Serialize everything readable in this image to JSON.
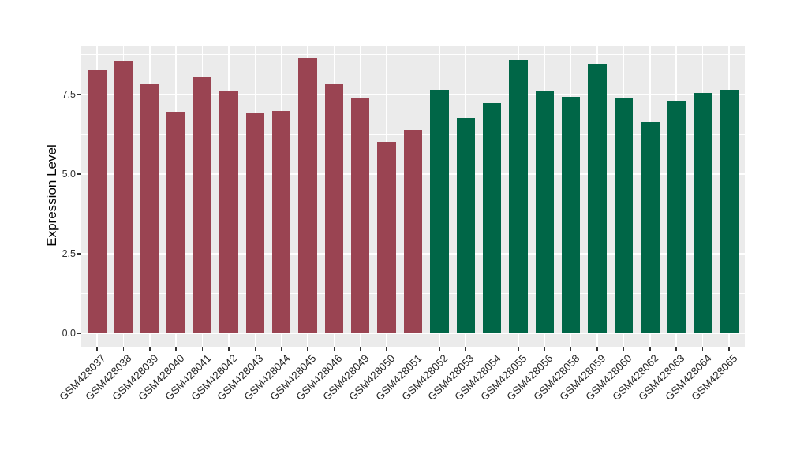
{
  "figure": {
    "background": "#FFFFFF",
    "panel_background": "#EBEBEB",
    "grid_color": "#FFFFFF",
    "tick_mark_color": "#333333",
    "axis_text_color": "#303030",
    "axis_title_color": "#000000"
  },
  "chart_data": {
    "type": "bar",
    "title": "",
    "xlabel": "",
    "ylabel": "Expression Level",
    "ylim": [
      0,
      9.03
    ],
    "grid": true,
    "legend_position": "none",
    "yticks": [
      0.0,
      2.5,
      5.0,
      7.5
    ],
    "ytick_labels": [
      "0.0",
      "2.5",
      "5.0",
      "7.5"
    ],
    "yminor_gridlines": [
      1.25,
      3.75,
      6.25,
      8.75
    ],
    "categories": [
      "GSM428037",
      "GSM428038",
      "GSM428039",
      "GSM428040",
      "GSM428041",
      "GSM428042",
      "GSM428043",
      "GSM428044",
      "GSM428045",
      "GSM428046",
      "GSM428049",
      "GSM428050",
      "GSM428051",
      "GSM428052",
      "GSM428053",
      "GSM428054",
      "GSM428055",
      "GSM428056",
      "GSM428058",
      "GSM428059",
      "GSM428060",
      "GSM428062",
      "GSM428063",
      "GSM428064",
      "GSM428065"
    ],
    "values": [
      8.26,
      8.56,
      7.82,
      6.96,
      8.05,
      7.62,
      6.94,
      6.99,
      8.64,
      7.85,
      7.38,
      6.01,
      6.39,
      7.65,
      6.76,
      7.24,
      8.59,
      7.59,
      7.43,
      8.47,
      7.4,
      6.64,
      7.3,
      7.54,
      7.66
    ],
    "bar_group_index": [
      0,
      0,
      0,
      0,
      0,
      0,
      0,
      0,
      0,
      0,
      0,
      0,
      0,
      1,
      1,
      1,
      1,
      1,
      1,
      1,
      1,
      1,
      1,
      1,
      1
    ],
    "group_colors": [
      "#9A4452",
      "#006647"
    ]
  }
}
